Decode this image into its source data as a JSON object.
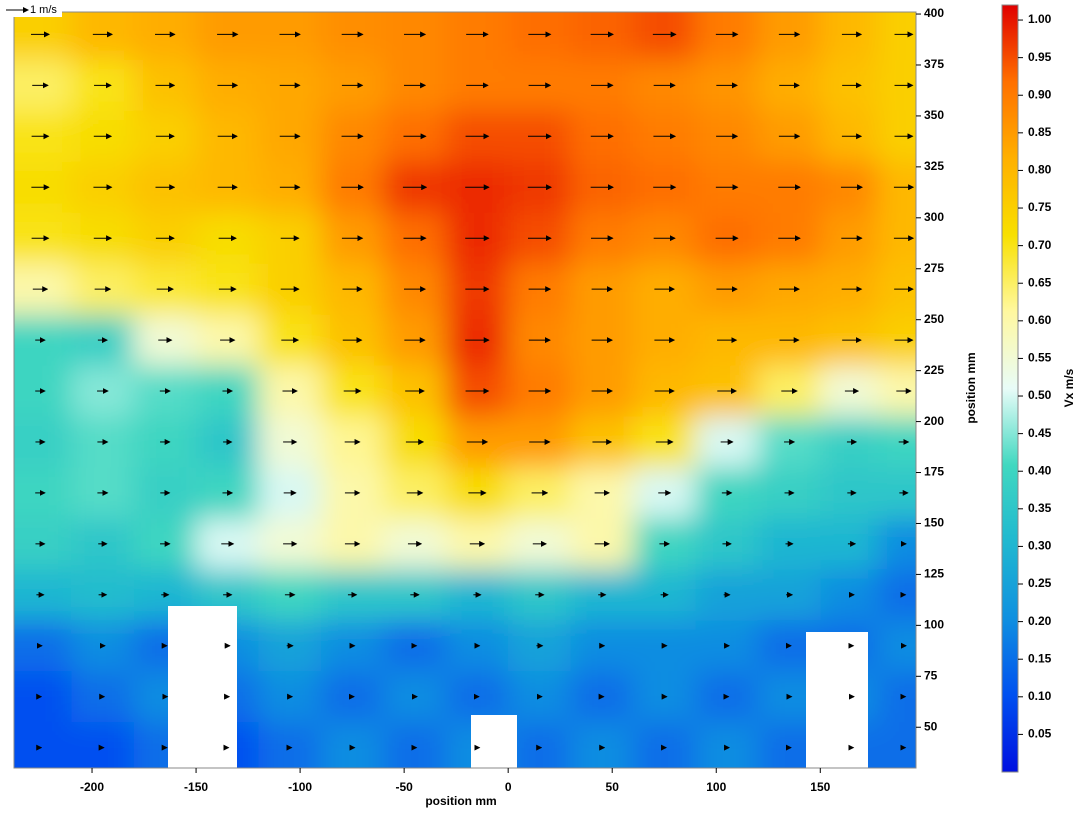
{
  "chart_data": {
    "type": "heatmap",
    "x_label": "position mm",
    "y_label": "position mm",
    "colorbar_label": "Vx m/s",
    "scale_label": "1 m/s",
    "xlim": [
      -237.5,
      196
    ],
    "ylim": [
      30,
      401
    ],
    "xticks": [
      -200,
      -150,
      -100,
      -50,
      0,
      50,
      100,
      150
    ],
    "yticks": [
      50,
      75,
      100,
      125,
      150,
      175,
      200,
      225,
      250,
      275,
      300,
      325,
      350,
      375,
      400
    ],
    "clim": [
      0,
      1.02
    ],
    "cticks": [
      0.05,
      {
        "value": 0.1,
        "label": "0.10"
      },
      0.15,
      {
        "value": 0.2,
        "label": "0.20"
      },
      0.25,
      {
        "value": 0.3,
        "label": "0.30"
      },
      0.35,
      {
        "value": 0.4,
        "label": "0.40"
      },
      0.45,
      {
        "value": 0.5,
        "label": "0.50"
      },
      0.55,
      {
        "value": 0.6,
        "label": "0.60"
      },
      0.65,
      {
        "value": 0.7,
        "label": "0.70"
      },
      0.75,
      {
        "value": 0.8,
        "label": "0.80"
      },
      0.85,
      {
        "value": 0.9,
        "label": "0.90"
      },
      0.95,
      {
        "value": 1.0,
        "label": "1.00"
      }
    ],
    "colormap": [
      "#0010e0",
      "#0050f0",
      "#1090e0",
      "#20b8d0",
      "#40d8c0",
      "#e8fcf8",
      "#fff8a0",
      "#f8e000",
      "#ffb000",
      "#ff7000",
      "#e00000"
    ],
    "x": [
      -225,
      -195,
      -165,
      -135,
      -105,
      -75,
      -45,
      -15,
      15,
      45,
      75,
      105,
      135,
      165,
      190
    ],
    "y": [
      390,
      365,
      340,
      315,
      290,
      265,
      240,
      215,
      190,
      165,
      140,
      115,
      90,
      65,
      40
    ],
    "values": [
      [
        0.75,
        0.8,
        0.82,
        0.85,
        0.85,
        0.87,
        0.88,
        0.9,
        0.92,
        0.93,
        0.95,
        0.9,
        0.85,
        0.8,
        0.75
      ],
      [
        0.65,
        0.7,
        0.78,
        0.82,
        0.83,
        0.85,
        0.88,
        0.9,
        0.9,
        0.9,
        0.88,
        0.86,
        0.82,
        0.78,
        0.75
      ],
      [
        0.7,
        0.72,
        0.75,
        0.8,
        0.83,
        0.88,
        0.92,
        0.95,
        0.95,
        0.92,
        0.9,
        0.88,
        0.85,
        0.8,
        0.75
      ],
      [
        0.72,
        0.75,
        0.78,
        0.8,
        0.82,
        0.9,
        0.97,
        0.98,
        0.97,
        0.93,
        0.92,
        0.9,
        0.9,
        0.88,
        0.8
      ],
      [
        0.7,
        0.72,
        0.75,
        0.72,
        0.75,
        0.85,
        0.92,
        0.98,
        0.95,
        0.9,
        0.88,
        0.92,
        0.9,
        0.85,
        0.8
      ],
      [
        0.6,
        0.65,
        0.68,
        0.7,
        0.75,
        0.8,
        0.88,
        0.97,
        0.9,
        0.85,
        0.82,
        0.85,
        0.83,
        0.82,
        0.78
      ],
      [
        0.4,
        0.38,
        0.55,
        0.6,
        0.7,
        0.78,
        0.85,
        0.98,
        0.88,
        0.85,
        0.82,
        0.8,
        0.8,
        0.78,
        0.75
      ],
      [
        0.4,
        0.45,
        0.42,
        0.4,
        0.6,
        0.7,
        0.78,
        0.95,
        0.9,
        0.85,
        0.8,
        0.78,
        0.65,
        0.55,
        0.6
      ],
      [
        0.38,
        0.42,
        0.4,
        0.35,
        0.55,
        0.62,
        0.72,
        0.85,
        0.85,
        0.78,
        0.7,
        0.5,
        0.42,
        0.38,
        0.4
      ],
      [
        0.4,
        0.42,
        0.38,
        0.4,
        0.5,
        0.6,
        0.65,
        0.72,
        0.65,
        0.6,
        0.5,
        0.4,
        0.38,
        0.35,
        0.35
      ],
      [
        0.38,
        0.35,
        0.4,
        0.5,
        0.55,
        0.6,
        0.55,
        0.6,
        0.55,
        0.6,
        0.4,
        0.35,
        0.3,
        0.3,
        0.2
      ],
      [
        0.3,
        0.32,
        0.3,
        0.35,
        0.4,
        0.35,
        0.35,
        0.3,
        0.35,
        0.3,
        0.3,
        0.25,
        0.25,
        0.2,
        0.15
      ],
      [
        0.15,
        0.2,
        0.15,
        0.2,
        0.25,
        0.2,
        0.15,
        0.2,
        0.25,
        0.2,
        0.2,
        0.2,
        0.15,
        0.15,
        0.2
      ],
      [
        0.1,
        0.15,
        0.2,
        0.15,
        0.2,
        0.15,
        0.2,
        0.15,
        0.2,
        0.15,
        0.2,
        0.15,
        0.2,
        0.2,
        0.15
      ],
      [
        0.1,
        0.1,
        0.15,
        0.1,
        0.15,
        0.2,
        0.15,
        0.2,
        0.15,
        0.2,
        0.15,
        0.2,
        0.15,
        0.15,
        0.15
      ]
    ]
  }
}
